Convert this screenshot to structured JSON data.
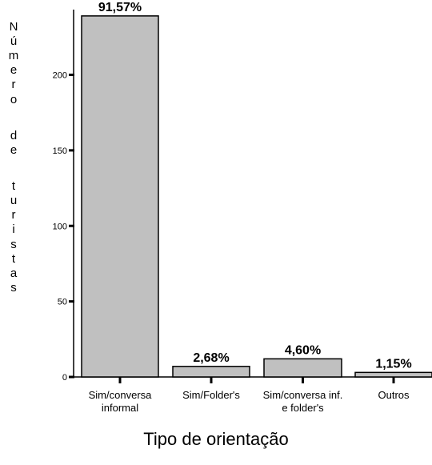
{
  "chart_data": {
    "type": "bar",
    "title": "",
    "xlabel": "Tipo de orientação",
    "ylabel": "Número de turistas",
    "ylim": [
      0,
      240
    ],
    "yticks": [
      0,
      50,
      100,
      150,
      200
    ],
    "categories": [
      [
        "Sim/conversa",
        "informal"
      ],
      [
        "Sim/Folder's"
      ],
      [
        "Sim/conversa inf.",
        "e folder's"
      ],
      [
        "Outros"
      ]
    ],
    "values": [
      239,
      7,
      12,
      3
    ],
    "data_labels": [
      "91,57%",
      "2,68%",
      "4,60%",
      "1,15%"
    ],
    "bar_color": "#c0c0c0",
    "bar_edge_color": "#000000",
    "grid": false,
    "legend": "none"
  }
}
